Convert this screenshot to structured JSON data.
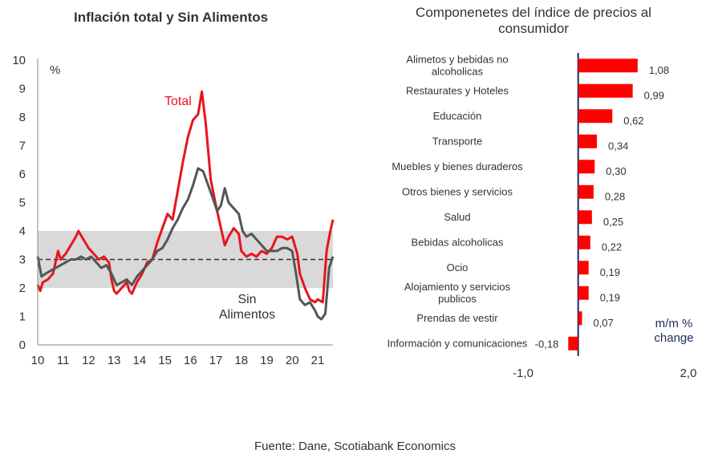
{
  "footer": {
    "source": "Fuente: Dane, Scotiabank Economics"
  },
  "colors": {
    "total": "#e8141e",
    "sin_alimentos": "#555555",
    "band": "#d9d9d9",
    "bar": "#ff0000",
    "axis": "#1f2a5a"
  },
  "chart_data": [
    {
      "type": "line",
      "title": "Inflación total y Sin Alimentos",
      "ylabel": "%",
      "xlabel": "",
      "ylim": [
        0,
        10
      ],
      "xlim": [
        10,
        21.6
      ],
      "x_ticks": [
        "10",
        "11",
        "12",
        "13",
        "14",
        "15",
        "16",
        "17",
        "18",
        "19",
        "20",
        "21"
      ],
      "y_ticks": [
        "0",
        "1",
        "2",
        "3",
        "4",
        "5",
        "6",
        "7",
        "8",
        "9",
        "10"
      ],
      "target_band": [
        2,
        4
      ],
      "target_line": 3,
      "series": [
        {
          "name": "Total",
          "color": "#e8141e",
          "points": [
            [
              10.0,
              2.1
            ],
            [
              10.1,
              1.9
            ],
            [
              10.2,
              2.2
            ],
            [
              10.4,
              2.3
            ],
            [
              10.6,
              2.5
            ],
            [
              10.8,
              3.3
            ],
            [
              10.9,
              3.0
            ],
            [
              11.1,
              3.2
            ],
            [
              11.3,
              3.5
            ],
            [
              11.5,
              3.8
            ],
            [
              11.6,
              4.0
            ],
            [
              11.8,
              3.7
            ],
            [
              12.0,
              3.4
            ],
            [
              12.2,
              3.2
            ],
            [
              12.4,
              3.0
            ],
            [
              12.6,
              3.1
            ],
            [
              12.8,
              2.9
            ],
            [
              12.9,
              2.3
            ],
            [
              13.0,
              1.9
            ],
            [
              13.1,
              1.8
            ],
            [
              13.3,
              2.0
            ],
            [
              13.5,
              2.2
            ],
            [
              13.6,
              1.9
            ],
            [
              13.7,
              1.8
            ],
            [
              13.9,
              2.2
            ],
            [
              14.1,
              2.5
            ],
            [
              14.3,
              2.9
            ],
            [
              14.5,
              3.0
            ],
            [
              14.7,
              3.6
            ],
            [
              14.9,
              4.1
            ],
            [
              15.1,
              4.6
            ],
            [
              15.3,
              4.4
            ],
            [
              15.5,
              5.4
            ],
            [
              15.7,
              6.4
            ],
            [
              15.9,
              7.3
            ],
            [
              16.1,
              7.9
            ],
            [
              16.3,
              8.1
            ],
            [
              16.45,
              8.9
            ],
            [
              16.6,
              7.8
            ],
            [
              16.8,
              5.8
            ],
            [
              17.0,
              4.9
            ],
            [
              17.2,
              4.1
            ],
            [
              17.35,
              3.5
            ],
            [
              17.5,
              3.8
            ],
            [
              17.7,
              4.1
            ],
            [
              17.9,
              3.9
            ],
            [
              18.0,
              3.3
            ],
            [
              18.2,
              3.1
            ],
            [
              18.4,
              3.2
            ],
            [
              18.6,
              3.1
            ],
            [
              18.8,
              3.3
            ],
            [
              19.0,
              3.2
            ],
            [
              19.2,
              3.4
            ],
            [
              19.4,
              3.8
            ],
            [
              19.6,
              3.8
            ],
            [
              19.8,
              3.7
            ],
            [
              20.0,
              3.8
            ],
            [
              20.2,
              3.2
            ],
            [
              20.3,
              2.5
            ],
            [
              20.5,
              2.0
            ],
            [
              20.7,
              1.6
            ],
            [
              20.9,
              1.5
            ],
            [
              21.0,
              1.6
            ],
            [
              21.2,
              1.5
            ],
            [
              21.35,
              3.3
            ],
            [
              21.5,
              4.0
            ],
            [
              21.6,
              4.4
            ]
          ]
        },
        {
          "name": "Sin Alimentos",
          "color": "#555555",
          "points": [
            [
              10.0,
              3.1
            ],
            [
              10.15,
              2.4
            ],
            [
              10.3,
              2.5
            ],
            [
              10.5,
              2.6
            ],
            [
              10.7,
              2.7
            ],
            [
              10.9,
              2.8
            ],
            [
              11.1,
              2.9
            ],
            [
              11.3,
              3.0
            ],
            [
              11.5,
              3.0
            ],
            [
              11.7,
              3.1
            ],
            [
              11.9,
              3.0
            ],
            [
              12.1,
              3.1
            ],
            [
              12.3,
              2.9
            ],
            [
              12.5,
              2.7
            ],
            [
              12.7,
              2.8
            ],
            [
              12.9,
              2.5
            ],
            [
              13.1,
              2.1
            ],
            [
              13.3,
              2.2
            ],
            [
              13.5,
              2.3
            ],
            [
              13.7,
              2.1
            ],
            [
              13.9,
              2.4
            ],
            [
              14.1,
              2.6
            ],
            [
              14.3,
              2.8
            ],
            [
              14.5,
              3.0
            ],
            [
              14.7,
              3.3
            ],
            [
              14.9,
              3.4
            ],
            [
              15.1,
              3.7
            ],
            [
              15.3,
              4.1
            ],
            [
              15.5,
              4.4
            ],
            [
              15.7,
              4.8
            ],
            [
              15.9,
              5.1
            ],
            [
              16.1,
              5.6
            ],
            [
              16.3,
              6.2
            ],
            [
              16.5,
              6.1
            ],
            [
              16.7,
              5.6
            ],
            [
              16.9,
              5.1
            ],
            [
              17.05,
              4.7
            ],
            [
              17.2,
              4.9
            ],
            [
              17.35,
              5.5
            ],
            [
              17.5,
              5.0
            ],
            [
              17.7,
              4.8
            ],
            [
              17.9,
              4.6
            ],
            [
              18.05,
              4.0
            ],
            [
              18.2,
              3.8
            ],
            [
              18.4,
              3.9
            ],
            [
              18.6,
              3.7
            ],
            [
              18.8,
              3.5
            ],
            [
              19.0,
              3.3
            ],
            [
              19.2,
              3.3
            ],
            [
              19.4,
              3.3
            ],
            [
              19.6,
              3.4
            ],
            [
              19.8,
              3.4
            ],
            [
              20.0,
              3.3
            ],
            [
              20.15,
              2.5
            ],
            [
              20.3,
              1.6
            ],
            [
              20.5,
              1.4
            ],
            [
              20.7,
              1.5
            ],
            [
              20.9,
              1.2
            ],
            [
              21.0,
              1.0
            ],
            [
              21.15,
              0.9
            ],
            [
              21.3,
              1.1
            ],
            [
              21.45,
              2.7
            ],
            [
              21.6,
              3.1
            ]
          ]
        }
      ],
      "annotations": [
        {
          "text": "Total",
          "series": "Total"
        },
        {
          "text": "Sin",
          "series": "Sin Alimentos"
        },
        {
          "text": "Alimentos",
          "series": "Sin Alimentos"
        }
      ]
    },
    {
      "type": "bar",
      "orientation": "horizontal",
      "title": "Componenetes del índice de precios al consumidor",
      "title_lines": [
        "Componenetes del índice de precios al",
        "consumidor"
      ],
      "xlim": [
        -1.0,
        2.0
      ],
      "x_ticks": [
        "-1,0",
        "2,0"
      ],
      "unit_label": [
        "m/m %",
        "change"
      ],
      "categories": [
        [
          "Alimetos y bebidas no",
          "alcoholicas"
        ],
        [
          "Restaurates y Hoteles"
        ],
        [
          "Educación"
        ],
        [
          "Transporte"
        ],
        [
          "Muebles y bienes duraderos"
        ],
        [
          "Otros bienes y servicios"
        ],
        [
          "Salud"
        ],
        [
          "Bebidas alcoholicas"
        ],
        [
          "Ocio"
        ],
        [
          "Alojamiento y servicios",
          "publicos"
        ],
        [
          "Prendas de vestir"
        ],
        [
          "Información y comunicaciones"
        ]
      ],
      "values": [
        1.08,
        0.99,
        0.62,
        0.34,
        0.3,
        0.28,
        0.25,
        0.22,
        0.19,
        0.19,
        0.07,
        -0.18
      ],
      "value_labels": [
        "1,08",
        "0,99",
        "0,62",
        "0,34",
        "0,30",
        "0,28",
        "0,25",
        "0,22",
        "0,19",
        "0,19",
        "0,07",
        "-0,18"
      ]
    }
  ]
}
